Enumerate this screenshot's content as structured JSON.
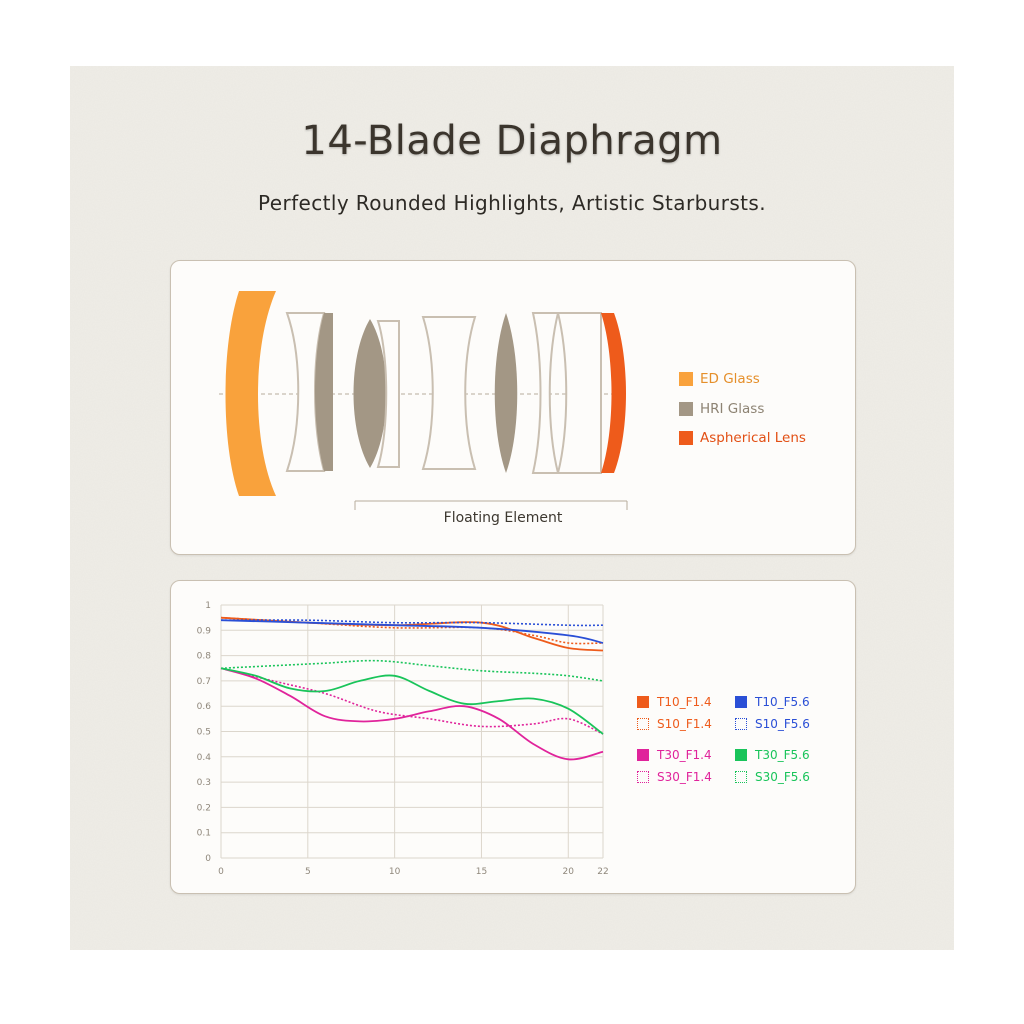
{
  "title": "14-Blade Diaphragm",
  "subtitle": "Perfectly Rounded Highlights, Artistic Starbursts.",
  "colors": {
    "background": "#efede7",
    "ed_glass": "#f9a23c",
    "hri_glass": "#a39785",
    "aspherical": "#ee5b1b",
    "lens_outline": "#c9bfb1"
  },
  "lens_diagram": {
    "legend": [
      {
        "label": "ED Glass",
        "color": "#f9a23c",
        "text_color": "#e58f2a"
      },
      {
        "label": "HRI Glass",
        "color": "#a39785",
        "text_color": "#8d8373"
      },
      {
        "label": "Aspherical Lens",
        "color": "#ee5b1b",
        "text_color": "#e24f14"
      }
    ],
    "floating_element_label": "Floating Element"
  },
  "chart_data": {
    "type": "line",
    "title": "",
    "xlabel": "",
    "ylabel": "",
    "xlim": [
      0,
      22
    ],
    "ylim": [
      0,
      1
    ],
    "x_ticks": [
      0,
      5,
      10,
      15,
      20,
      22
    ],
    "y_ticks": [
      0,
      0.1,
      0.2,
      0.3,
      0.4,
      0.5,
      0.6,
      0.7,
      0.8,
      0.9,
      1
    ],
    "y_tick_labels": [
      "0",
      "0.1",
      "0.2",
      "0.3",
      "0.4",
      "0.5",
      "0.6",
      "0.7",
      "0.8",
      "0.9",
      "1"
    ],
    "grid": true,
    "legend_position": "right",
    "series": [
      {
        "name": "T10_F1.4",
        "color": "#ee5b1b",
        "style": "solid",
        "x": [
          0,
          5,
          10,
          15,
          18,
          20,
          22
        ],
        "y": [
          0.95,
          0.93,
          0.92,
          0.93,
          0.87,
          0.83,
          0.82
        ]
      },
      {
        "name": "S10_F1.4",
        "color": "#ee5b1b",
        "style": "dotted",
        "x": [
          0,
          5,
          10,
          15,
          18,
          20,
          22
        ],
        "y": [
          0.95,
          0.93,
          0.91,
          0.91,
          0.88,
          0.85,
          0.85
        ]
      },
      {
        "name": "T10_F5.6",
        "color": "#2a4fd6",
        "style": "solid",
        "x": [
          0,
          5,
          10,
          15,
          20,
          22
        ],
        "y": [
          0.94,
          0.93,
          0.92,
          0.91,
          0.88,
          0.85
        ]
      },
      {
        "name": "S10_F5.6",
        "color": "#2a4fd6",
        "style": "dotted",
        "x": [
          0,
          5,
          10,
          15,
          20,
          22
        ],
        "y": [
          0.94,
          0.94,
          0.93,
          0.93,
          0.92,
          0.92
        ]
      },
      {
        "name": "T30_F1.4",
        "color": "#e0239b",
        "style": "solid",
        "x": [
          0,
          2,
          4,
          6,
          8,
          10,
          12,
          14,
          16,
          18,
          20,
          22
        ],
        "y": [
          0.75,
          0.71,
          0.64,
          0.56,
          0.54,
          0.55,
          0.58,
          0.6,
          0.55,
          0.45,
          0.39,
          0.42
        ]
      },
      {
        "name": "S30_F1.4",
        "color": "#e0239b",
        "style": "dotted",
        "x": [
          0,
          3,
          6,
          9,
          12,
          15,
          18,
          20,
          22
        ],
        "y": [
          0.75,
          0.7,
          0.65,
          0.58,
          0.55,
          0.52,
          0.53,
          0.55,
          0.49
        ]
      },
      {
        "name": "T30_F5.6",
        "color": "#19c45a",
        "style": "solid",
        "x": [
          0,
          2,
          4,
          6,
          8,
          10,
          12,
          14,
          16,
          18,
          20,
          22
        ],
        "y": [
          0.75,
          0.72,
          0.67,
          0.66,
          0.7,
          0.72,
          0.66,
          0.61,
          0.62,
          0.63,
          0.59,
          0.49
        ]
      },
      {
        "name": "S30_F5.6",
        "color": "#19c45a",
        "style": "dotted",
        "x": [
          0,
          3,
          6,
          9,
          12,
          15,
          18,
          20,
          22
        ],
        "y": [
          0.75,
          0.76,
          0.77,
          0.78,
          0.76,
          0.74,
          0.73,
          0.72,
          0.7
        ]
      }
    ]
  }
}
